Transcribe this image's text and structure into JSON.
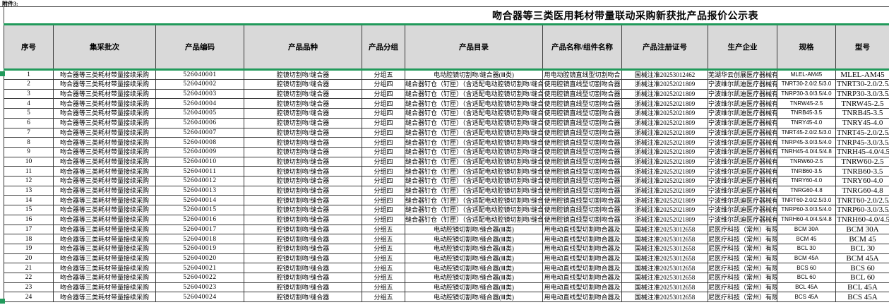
{
  "attachment_label": "附件3:",
  "title": "吻合器等三类医用耗材带量联动采购新获批产品报价公示表",
  "colors": {
    "accent_green": "#219a5b",
    "header_bg": "#d9d9d9",
    "grid_line": "#3a3a3a",
    "row_bg": "#ffffff"
  },
  "columns": [
    {
      "key": "no",
      "label": "序号"
    },
    {
      "key": "batch",
      "label": "集采批次"
    },
    {
      "key": "code",
      "label": "产品编码"
    },
    {
      "key": "variety",
      "label": "产品品种"
    },
    {
      "key": "group",
      "label": "产品分组"
    },
    {
      "key": "catalog",
      "label": "产品目录"
    },
    {
      "key": "name",
      "label": "产品名称/组件名称"
    },
    {
      "key": "reg_no",
      "label": "产品注册证号"
    },
    {
      "key": "manufacturer",
      "label": "生产企业"
    },
    {
      "key": "spec",
      "label": "规格"
    },
    {
      "key": "model",
      "label": "型号"
    }
  ],
  "rows": [
    {
      "no": 1,
      "batch": "吻合器等三类耗材带量接续采购",
      "code": "526040001",
      "variety": "腔镜切割吻/缝合器",
      "group": "分组五",
      "catalog": "电动腔镜切割吻/缝合器(Ⅲ类)",
      "name": "用电动腔镜直线型切割吻合",
      "reg_no": "国械注准20253012462",
      "manufacturer": "芜湖华云创展医疗器械有限公司",
      "spec": "MLEL-AM45",
      "model": "MLEL-AM45"
    },
    {
      "no": 2,
      "batch": "吻合器等三类耗材带量接续采购",
      "code": "526040002",
      "variety": "腔镜切割吻/缝合器",
      "group": "分组四",
      "catalog": "缝合器钉仓（钉匣）（含适配电动腔镜切割吻/缝合器）",
      "name": "使用腔镜直线型切割吻合器",
      "reg_no": "浙械注准20252021809",
      "manufacturer": "宁波维尔凯迪医疗器械有限公司",
      "spec": "TNRT30-2.0/2.5/3.0",
      "model": "TNRT30-2.0/2.5/3.0"
    },
    {
      "no": 3,
      "batch": "吻合器等三类耗材带量接续采购",
      "code": "526040003",
      "variety": "腔镜切割吻/缝合器",
      "group": "分组四",
      "catalog": "缝合器钉仓（钉匣）（含适配电动腔镜切割吻/缝合器）",
      "name": "使用腔镜直线型切割吻合器",
      "reg_no": "浙械注准20252021809",
      "manufacturer": "宁波维尔凯迪医疗器械有限公司",
      "spec": "TNRP30-3.0/3.5/4.0",
      "model": "TNRP30-3.0/3.5/4.0"
    },
    {
      "no": 4,
      "batch": "吻合器等三类耗材带量接续采购",
      "code": "526040004",
      "variety": "腔镜切割吻/缝合器",
      "group": "分组四",
      "catalog": "缝合器钉仓（钉匣）（含适配电动腔镜切割吻/缝合器）",
      "name": "使用腔镜直线型切割吻合器",
      "reg_no": "浙械注准20252021809",
      "manufacturer": "宁波维尔凯迪医疗器械有限公司",
      "spec": "TNRW45-2.5",
      "model": "TNRW45-2.5"
    },
    {
      "no": 5,
      "batch": "吻合器等三类耗材带量接续采购",
      "code": "526040005",
      "variety": "腔镜切割吻/缝合器",
      "group": "分组四",
      "catalog": "缝合器钉仓（钉匣）（含适配电动腔镜切割吻/缝合器）",
      "name": "使用腔镜直线型切割吻合器",
      "reg_no": "浙械注准20252021809",
      "manufacturer": "宁波维尔凯迪医疗器械有限公司",
      "spec": "TNRB45-3.5",
      "model": "TNRB45-3.5"
    },
    {
      "no": 6,
      "batch": "吻合器等三类耗材带量接续采购",
      "code": "526040006",
      "variety": "腔镜切割吻/缝合器",
      "group": "分组四",
      "catalog": "缝合器钉仓（钉匣）（含适配电动腔镜切割吻/缝合器）",
      "name": "使用腔镜直线型切割吻合器",
      "reg_no": "浙械注准20252021809",
      "manufacturer": "宁波维尔凯迪医疗器械有限公司",
      "spec": "TNRY45-4.0",
      "model": "TNRY45-4.0"
    },
    {
      "no": 7,
      "batch": "吻合器等三类耗材带量接续采购",
      "code": "526040007",
      "variety": "腔镜切割吻/缝合器",
      "group": "分组四",
      "catalog": "缝合器钉仓（钉匣）（含适配电动腔镜切割吻/缝合器）",
      "name": "使用腔镜直线型切割吻合器",
      "reg_no": "浙械注准20252021809",
      "manufacturer": "宁波维尔凯迪医疗器械有限公司",
      "spec": "TNRT45-2.0/2.5/3.0",
      "model": "TNRT45-2.0/2.5/3.0"
    },
    {
      "no": 8,
      "batch": "吻合器等三类耗材带量接续采购",
      "code": "526040008",
      "variety": "腔镜切割吻/缝合器",
      "group": "分组四",
      "catalog": "缝合器钉仓（钉匣）（含适配电动腔镜切割吻/缝合器）",
      "name": "使用腔镜直线型切割吻合器",
      "reg_no": "浙械注准20252021809",
      "manufacturer": "宁波维尔凯迪医疗器械有限公司",
      "spec": "TNRP45-3.0/3.5/4.0",
      "model": "TNRP45-3.0/3.5/4.0"
    },
    {
      "no": 9,
      "batch": "吻合器等三类耗材带量接续采购",
      "code": "526040009",
      "variety": "腔镜切割吻/缝合器",
      "group": "分组四",
      "catalog": "缝合器钉仓（钉匣）（含适配电动腔镜切割吻/缝合器）",
      "name": "使用腔镜直线型切割吻合器",
      "reg_no": "浙械注准20252021809",
      "manufacturer": "宁波维尔凯迪医疗器械有限公司",
      "spec": "TNRH45-4.0/4.5/4.8",
      "model": "TNRH45-4.0/4.5/4.8"
    },
    {
      "no": 10,
      "batch": "吻合器等三类耗材带量接续采购",
      "code": "526040010",
      "variety": "腔镜切割吻/缝合器",
      "group": "分组四",
      "catalog": "缝合器钉仓（钉匣）（含适配电动腔镜切割吻/缝合器）",
      "name": "使用腔镜直线型切割吻合器",
      "reg_no": "浙械注准20252021809",
      "manufacturer": "宁波维尔凯迪医疗器械有限公司",
      "spec": "TNRW60-2.5",
      "model": "TNRW60-2.5"
    },
    {
      "no": 11,
      "batch": "吻合器等三类耗材带量接续采购",
      "code": "526040011",
      "variety": "腔镜切割吻/缝合器",
      "group": "分组四",
      "catalog": "缝合器钉仓（钉匣）（含适配电动腔镜切割吻/缝合器）",
      "name": "使用腔镜直线型切割吻合器",
      "reg_no": "浙械注准20252021809",
      "manufacturer": "宁波维尔凯迪医疗器械有限公司",
      "spec": "TNRB60-3.5",
      "model": "TNRB60-3.5"
    },
    {
      "no": 12,
      "batch": "吻合器等三类耗材带量接续采购",
      "code": "526040012",
      "variety": "腔镜切割吻/缝合器",
      "group": "分组四",
      "catalog": "缝合器钉仓（钉匣）（含适配电动腔镜切割吻/缝合器）",
      "name": "使用腔镜直线型切割吻合器",
      "reg_no": "浙械注准20252021809",
      "manufacturer": "宁波维尔凯迪医疗器械有限公司",
      "spec": "TNRY60-4.0",
      "model": "TNRY60-4.0"
    },
    {
      "no": 13,
      "batch": "吻合器等三类耗材带量接续采购",
      "code": "526040013",
      "variety": "腔镜切割吻/缝合器",
      "group": "分组四",
      "catalog": "缝合器钉仓（钉匣）（含适配电动腔镜切割吻/缝合器）",
      "name": "使用腔镜直线型切割吻合器",
      "reg_no": "浙械注准20252021809",
      "manufacturer": "宁波维尔凯迪医疗器械有限公司",
      "spec": "TNRG60-4.8",
      "model": "TNRG60-4.8"
    },
    {
      "no": 14,
      "batch": "吻合器等三类耗材带量接续采购",
      "code": "526040014",
      "variety": "腔镜切割吻/缝合器",
      "group": "分组四",
      "catalog": "缝合器钉仓（钉匣）（含适配电动腔镜切割吻/缝合器）",
      "name": "使用腔镜直线型切割吻合器",
      "reg_no": "浙械注准20252021809",
      "manufacturer": "宁波维尔凯迪医疗器械有限公司",
      "spec": "TNRT60-2.0/2.5/3.0",
      "model": "TNRT60-2.0/2.5/3.0"
    },
    {
      "no": 15,
      "batch": "吻合器等三类耗材带量接续采购",
      "code": "526040015",
      "variety": "腔镜切割吻/缝合器",
      "group": "分组四",
      "catalog": "缝合器钉仓（钉匣）（含适配电动腔镜切割吻/缝合器）",
      "name": "使用腔镜直线型切割吻合器",
      "reg_no": "浙械注准20252021809",
      "manufacturer": "宁波维尔凯迪医疗器械有限公司",
      "spec": "TNRP60-3.0/3.5/4.0",
      "model": "TNRP60-3.0/3.5/4.0"
    },
    {
      "no": 16,
      "batch": "吻合器等三类耗材带量接续采购",
      "code": "526040016",
      "variety": "腔镜切割吻/缝合器",
      "group": "分组四",
      "catalog": "缝合器钉仓（钉匣）（含适配电动腔镜切割吻/缝合器）",
      "name": "使用腔镜直线型切割吻合器",
      "reg_no": "浙械注准20252021809",
      "manufacturer": "宁波维尔凯迪医疗器械有限公司",
      "spec": "TNRH60-4.0/4.5/4.8",
      "model": "TNRH60-4.0/4.5/4.8"
    },
    {
      "no": 17,
      "batch": "吻合器等三类耗材带量接续采购",
      "code": "526040017",
      "variety": "腔镜切割吻/缝合器",
      "group": "分组五",
      "catalog": "电动腔镜切割吻/缝合器(Ⅲ类)",
      "name": "用电动直线型切割吻合器及",
      "reg_no": "国械注准20253012658",
      "manufacturer": "尼医疗科技（常州）有限公司",
      "spec": "BCM 30A",
      "model": "BCM 30A"
    },
    {
      "no": 18,
      "batch": "吻合器等三类耗材带量接续采购",
      "code": "526040018",
      "variety": "腔镜切割吻/缝合器",
      "group": "分组五",
      "catalog": "电动腔镜切割吻/缝合器(Ⅲ类)",
      "name": "用电动直线型切割吻合器及",
      "reg_no": "国械注准20253012658",
      "manufacturer": "尼医疗科技（常州）有限公司",
      "spec": "BCM 45",
      "model": "BCM 45"
    },
    {
      "no": 19,
      "batch": "吻合器等三类耗材带量接续采购",
      "code": "526040019",
      "variety": "腔镜切割吻/缝合器",
      "group": "分组五",
      "catalog": "电动腔镜切割吻/缝合器(Ⅲ类)",
      "name": "用电动直线型切割吻合器及",
      "reg_no": "国械注准20253012658",
      "manufacturer": "尼医疗科技（常州）有限公司",
      "spec": "BCL 30",
      "model": "BCL 30"
    },
    {
      "no": 20,
      "batch": "吻合器等三类耗材带量接续采购",
      "code": "526040020",
      "variety": "腔镜切割吻/缝合器",
      "group": "分组五",
      "catalog": "电动腔镜切割吻/缝合器(Ⅲ类)",
      "name": "用电动直线型切割吻合器及",
      "reg_no": "国械注准20253012658",
      "manufacturer": "尼医疗科技（常州）有限公司",
      "spec": "BCM 45A",
      "model": "BCM 45A"
    },
    {
      "no": 21,
      "batch": "吻合器等三类耗材带量接续采购",
      "code": "526040021",
      "variety": "腔镜切割吻/缝合器",
      "group": "分组五",
      "catalog": "电动腔镜切割吻/缝合器(Ⅲ类)",
      "name": "用电动直线型切割吻合器及",
      "reg_no": "国械注准20253012658",
      "manufacturer": "尼医疗科技（常州）有限公司",
      "spec": "BCS 60",
      "model": "BCS 60"
    },
    {
      "no": 22,
      "batch": "吻合器等三类耗材带量接续采购",
      "code": "526040022",
      "variety": "腔镜切割吻/缝合器",
      "group": "分组五",
      "catalog": "电动腔镜切割吻/缝合器(Ⅲ类)",
      "name": "用电动直线型切割吻合器及",
      "reg_no": "国械注准20253012658",
      "manufacturer": "尼医疗科技（常州）有限公司",
      "spec": "BCL 60",
      "model": "BCL 60"
    },
    {
      "no": 23,
      "batch": "吻合器等三类耗材带量接续采购",
      "code": "526040023",
      "variety": "腔镜切割吻/缝合器",
      "group": "分组五",
      "catalog": "电动腔镜切割吻/缝合器(Ⅲ类)",
      "name": "用电动直线型切割吻合器及",
      "reg_no": "国械注准20253012658",
      "manufacturer": "尼医疗科技（常州）有限公司",
      "spec": "BCL 45A",
      "model": "BCL 45A"
    },
    {
      "no": 24,
      "batch": "吻合器等三类耗材带量接续采购",
      "code": "526040024",
      "variety": "腔镜切割吻/缝合器",
      "group": "分组五",
      "catalog": "电动腔镜切割吻/缝合器(Ⅲ类)",
      "name": "用电动直线型切割吻合器及",
      "reg_no": "国械注准20253012658",
      "manufacturer": "尼医疗科技（常州）有限公司",
      "spec": "BCS 45A",
      "model": "BCS 45A"
    }
  ]
}
